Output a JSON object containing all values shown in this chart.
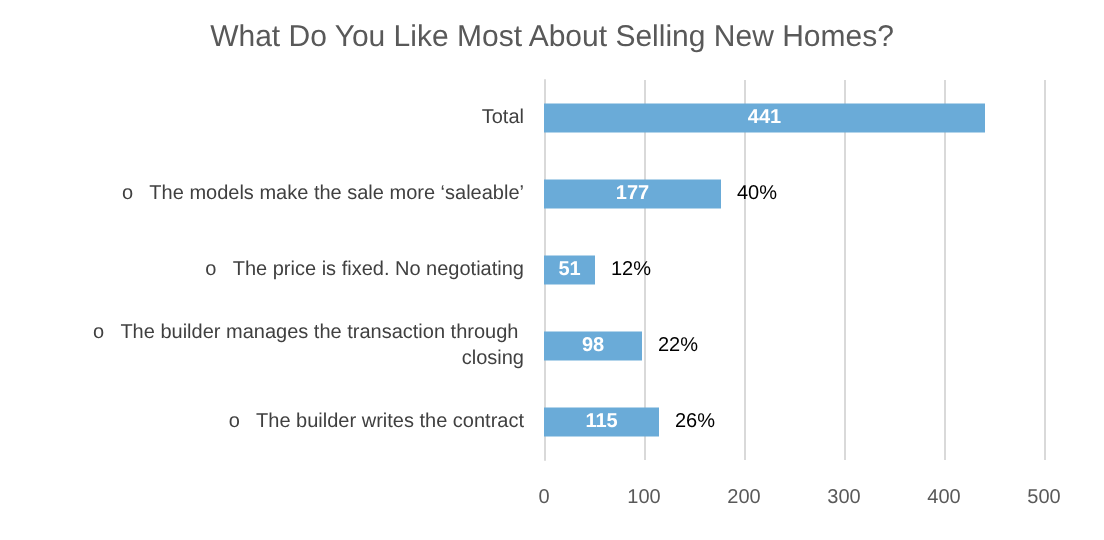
{
  "chart_data": {
    "type": "bar",
    "orientation": "horizontal",
    "title": "What Do You Like Most About Selling New Homes?",
    "categories": [
      "Total",
      "o   The models make the sale more ‘saleable’",
      "o   The price is fixed. No negotiating",
      "o   The builder manages the transaction through closing",
      "o   The builder writes the contract"
    ],
    "values": [
      441,
      177,
      51,
      98,
      115
    ],
    "color": "#6aabd8",
    "data_labels": true,
    "xlim": [
      0,
      500
    ],
    "xticks": [
      0,
      100,
      200,
      300,
      400,
      500
    ],
    "grid": "x",
    "annotations": [
      {
        "text": "40%",
        "x": 177,
        "y": "o   The models make the sale more ‘saleable’"
      },
      {
        "text": "12%",
        "x": 51,
        "y": "o   The price is fixed. No negotiating"
      },
      {
        "text": "22%",
        "x": 98,
        "y": "o   The builder manages the transaction through closing"
      },
      {
        "text": "26%",
        "x": 115,
        "y": "o   The builder writes the contract"
      }
    ]
  }
}
